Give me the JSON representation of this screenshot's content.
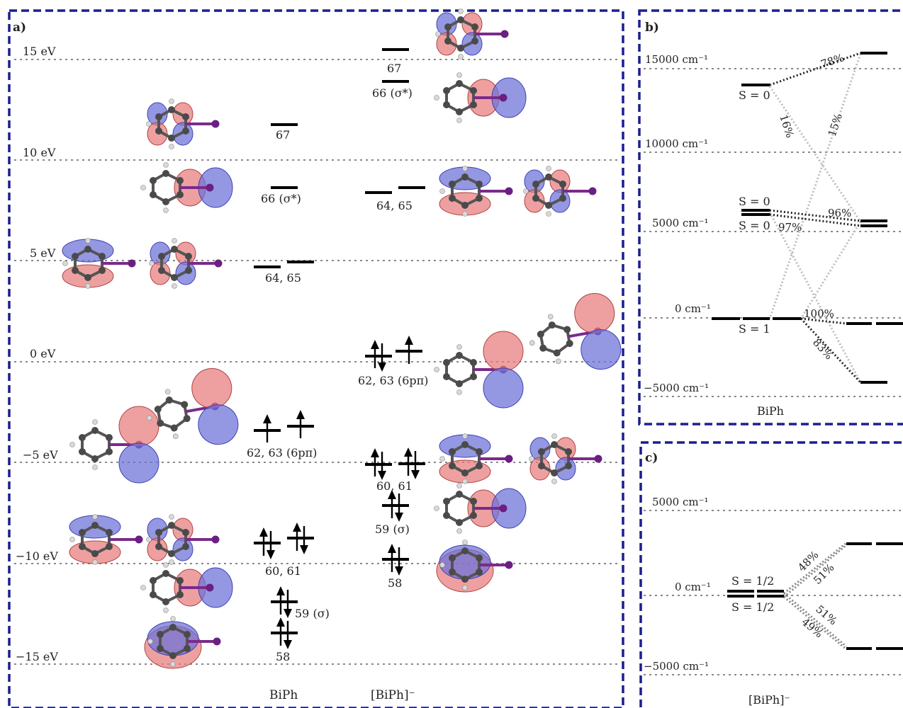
{
  "panel_a": {
    "label": "a)",
    "energy_axis": [
      "15 eV",
      "10 eV",
      "5 eV",
      "0 eV",
      "−5 eV",
      "−10 eV",
      "−15 eV"
    ],
    "columns": {
      "biph": "BiPh",
      "anion": "[BiPh]⁻"
    },
    "biph_levels": {
      "l67": "67",
      "l66": "66 (σ*)",
      "l6465": "64, 65",
      "l6263": "62, 63 (6pπ)",
      "l6061": "60, 61",
      "l59": "59 (σ)",
      "l58": "58"
    },
    "anion_levels": {
      "l67": "67",
      "l66": "66 (σ*)",
      "l6465": "64, 65",
      "l6263": "62, 63 (6pπ)",
      "l6061": "60, 61",
      "l59": "59 (σ)",
      "l58": "58"
    }
  },
  "panel_b": {
    "label": "b)",
    "axis": [
      "15000 cm⁻¹",
      "10000 cm⁻¹",
      "5000 cm⁻¹",
      "0 cm⁻¹",
      "−5000 cm⁻¹"
    ],
    "states": {
      "s0_top": "S = 0",
      "s0_mid_a": "S = 0",
      "s0_mid_b": "S = 0",
      "s1": "S = 1"
    },
    "percentages": {
      "p78": "78%",
      "p16": "16%",
      "p15": "15%",
      "p96": "96%",
      "p97": "97%",
      "p100": "100%",
      "p83": "83%"
    },
    "caption": "BiPh"
  },
  "panel_c": {
    "label": "c)",
    "axis": [
      "5000 cm⁻¹",
      "0 cm⁻¹",
      "−5000 cm⁻¹"
    ],
    "states": {
      "half_a": "S = 1/2",
      "half_b": "S = 1/2"
    },
    "percentages": {
      "p48": "48%",
      "p51a": "51%",
      "p51b": "51%",
      "p49": "49%"
    },
    "caption": "[BiPh]⁻"
  }
}
